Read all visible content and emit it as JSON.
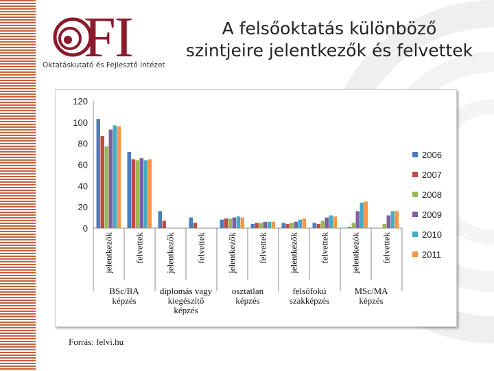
{
  "logo": {
    "text": "FI",
    "subtitle": "Oktatáskutató és Fejlesztő Intézet",
    "accent": "#8b1a2b"
  },
  "title": {
    "line1": "A felsőoktatás különböző",
    "line2": "szintjeire jelentkezők és felvettek"
  },
  "source": "Forrás: felvi.hu",
  "colors": {
    "stripe": "#c8603c"
  },
  "chart_data": {
    "type": "bar",
    "ylim": [
      0,
      120
    ],
    "yticks": [
      0,
      20,
      40,
      60,
      80,
      100,
      120
    ],
    "grid": false,
    "legend_position": "right",
    "categories": [
      "jelentkezők",
      "felvettek",
      "jelentkezők",
      "felvettek",
      "jelentkezők",
      "felvettek",
      "jelentkezők",
      "felvettek",
      "jelentkezők",
      "felvettek"
    ],
    "groups": [
      {
        "label": [
          "BSc/BA",
          "képzés"
        ]
      },
      {
        "label": [
          "diplomás vagy",
          "kiegészítő",
          "képzés"
        ]
      },
      {
        "label": [
          "osztatlan",
          "képzés"
        ]
      },
      {
        "label": [
          "felsőfokú",
          "szakképzés"
        ]
      },
      {
        "label": [
          "MSc/MA",
          "képzés"
        ]
      }
    ],
    "series": [
      {
        "name": "2006",
        "color": "#4a7ebb",
        "values": [
          103,
          72,
          16,
          10,
          8,
          4,
          5,
          5,
          0,
          0
        ]
      },
      {
        "name": "2007",
        "color": "#be4b48",
        "values": [
          87,
          65,
          7,
          5,
          9,
          5,
          4,
          4,
          1,
          0
        ]
      },
      {
        "name": "2008",
        "color": "#98b954",
        "values": [
          77,
          64,
          0,
          0,
          9,
          5,
          5,
          7,
          5,
          4
        ]
      },
      {
        "name": "2009",
        "color": "#7d60a0",
        "values": [
          93,
          66,
          0,
          0,
          10,
          6,
          6,
          10,
          16,
          12
        ]
      },
      {
        "name": "2010",
        "color": "#46aac5",
        "values": [
          97,
          64,
          0,
          0,
          11,
          6,
          8,
          12,
          24,
          16
        ]
      },
      {
        "name": "2011",
        "color": "#f79646",
        "values": [
          96,
          65,
          0,
          0,
          10,
          6,
          9,
          11,
          25,
          16
        ]
      }
    ]
  }
}
